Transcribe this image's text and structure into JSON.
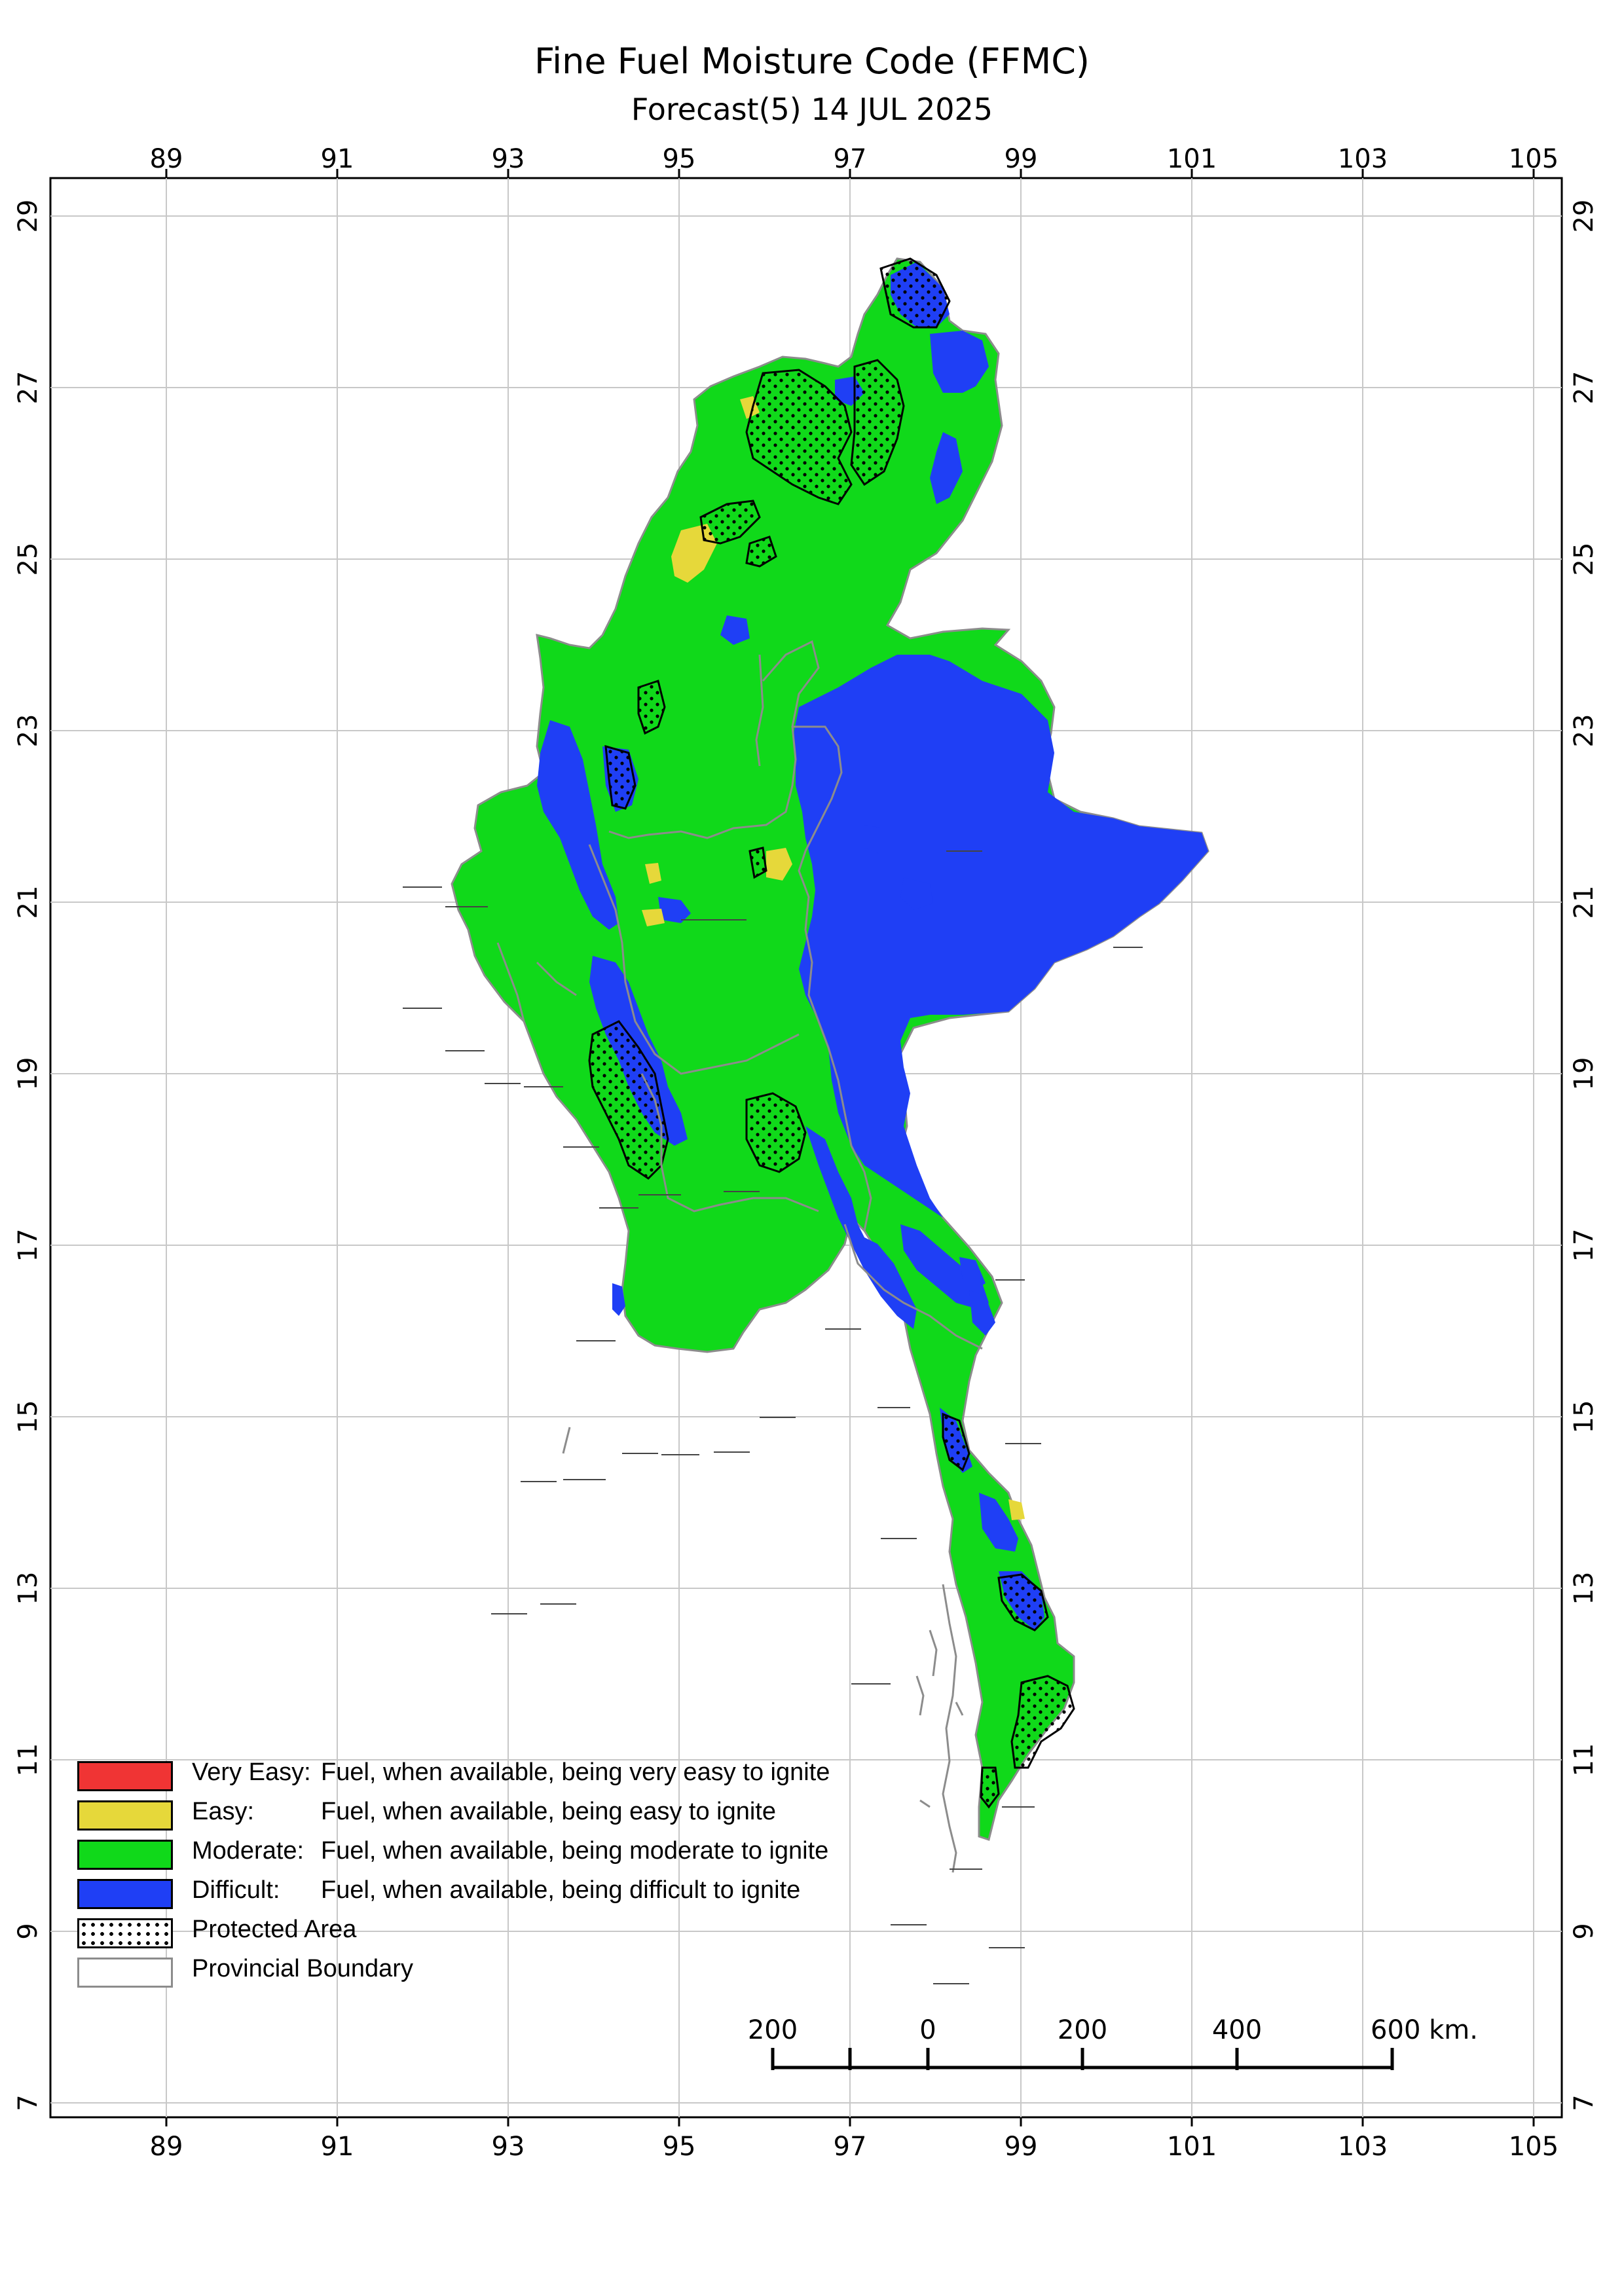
{
  "title": "Fine Fuel Moisture Code (FFMC)",
  "subtitle": "Forecast(5) 14 JUL 2025",
  "axes": {
    "lon_labels": [
      "89",
      "91",
      "93",
      "95",
      "97",
      "99",
      "101",
      "103",
      "105"
    ],
    "lat_labels": [
      "29",
      "27",
      "25",
      "23",
      "21",
      "19",
      "17",
      "15",
      "13",
      "11",
      "9",
      "7"
    ]
  },
  "legend": {
    "items": [
      {
        "label": "Very Easy:",
        "desc": "Fuel, when available, being very easy to ignite",
        "color": "#f03434"
      },
      {
        "label": "Easy:",
        "desc": "Fuel, when available, being easy to ignite",
        "color": "#e6d83a"
      },
      {
        "label": "Moderate:",
        "desc": "Fuel, when available, being moderate to ignite",
        "color": "#10d91a"
      },
      {
        "label": "Difficult:",
        "desc": "Fuel, when available, being difficult to ignite",
        "color": "#1f3ff5"
      }
    ],
    "protected_label": "Protected Area",
    "boundary_label": "Provincial Boundary"
  },
  "scale_bar": {
    "labels": [
      "200",
      "0",
      "200",
      "400",
      "600 km."
    ]
  },
  "colors": {
    "moderate": "#10d91a",
    "difficult": "#1f3ff5",
    "easy": "#e6d83a",
    "boundary": "#8c8c8c"
  }
}
